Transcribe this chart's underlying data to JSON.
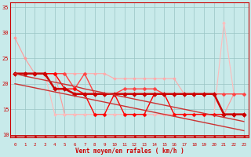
{
  "xlabel": "Vent moyen/en rafales ( km/h )",
  "xlim": [
    0,
    23
  ],
  "ylim": [
    9.5,
    36
  ],
  "yticks": [
    10,
    15,
    20,
    25,
    30,
    35
  ],
  "xticks": [
    0,
    1,
    2,
    3,
    4,
    5,
    6,
    7,
    8,
    9,
    10,
    11,
    12,
    13,
    14,
    15,
    16,
    17,
    18,
    19,
    20,
    21,
    22,
    23
  ],
  "bg_color": "#c8eaea",
  "grid_color": "#99c4c4",
  "series": [
    {
      "color": "#ffaaaa",
      "linewidth": 0.8,
      "marker": "D",
      "markersize": 2.0,
      "linestyle": "-",
      "y": [
        22,
        22,
        22,
        22,
        22,
        22,
        22,
        22,
        22,
        22,
        21,
        21,
        21,
        21,
        21,
        21,
        21,
        18,
        18,
        18,
        18,
        18,
        18,
        18
      ]
    },
    {
      "color": "#ff9999",
      "linewidth": 0.8,
      "marker": "D",
      "markersize": 2.0,
      "linestyle": "-",
      "y": [
        29,
        25,
        22,
        22,
        22,
        14,
        14,
        14,
        14,
        14,
        14,
        14,
        14,
        14,
        14,
        14,
        14,
        14,
        14,
        14,
        14,
        14,
        18,
        18
      ]
    },
    {
      "color": "#ffbbbb",
      "linewidth": 0.8,
      "marker": "D",
      "markersize": 2.0,
      "linestyle": "-",
      "y": [
        22,
        22,
        22,
        22,
        14,
        14,
        14,
        14,
        14,
        14,
        14,
        14,
        14,
        14,
        14,
        14,
        14,
        14,
        14,
        14,
        14,
        32,
        18,
        18
      ]
    },
    {
      "color": "#ff4444",
      "linewidth": 1.0,
      "marker": "D",
      "markersize": 2.5,
      "linestyle": "-",
      "y": [
        22,
        22,
        22,
        22,
        22,
        22,
        19,
        22,
        18,
        18,
        18,
        19,
        19,
        19,
        19,
        18,
        18,
        18,
        18,
        18,
        18,
        18,
        18,
        18
      ]
    },
    {
      "color": "#ff0000",
      "linewidth": 1.0,
      "marker": "D",
      "markersize": 2.5,
      "linestyle": "-",
      "y": [
        22,
        22,
        22,
        22,
        22,
        19,
        19,
        18,
        14,
        14,
        18,
        14,
        14,
        14,
        18,
        18,
        14,
        14,
        14,
        14,
        14,
        14,
        14,
        14
      ]
    },
    {
      "color": "#cc0000",
      "linewidth": 1.8,
      "marker": "D",
      "markersize": 3.0,
      "linestyle": "-",
      "y": [
        22,
        22,
        22,
        22,
        19,
        19,
        18,
        18,
        18,
        18,
        18,
        18,
        18,
        18,
        18,
        18,
        18,
        18,
        18,
        18,
        18,
        14,
        14,
        14
      ]
    },
    {
      "color": "#cc3333",
      "linewidth": 1.0,
      "marker": null,
      "markersize": 0,
      "linestyle": "-",
      "y": [
        22.0,
        21.5,
        21.1,
        20.7,
        20.3,
        19.9,
        19.5,
        19.0,
        18.6,
        18.2,
        17.8,
        17.4,
        17.0,
        16.6,
        16.2,
        15.8,
        15.4,
        15.0,
        14.6,
        14.2,
        13.8,
        13.4,
        13.0,
        12.6
      ]
    },
    {
      "color": "#cc3333",
      "linewidth": 1.0,
      "marker": null,
      "markersize": 0,
      "linestyle": "-",
      "y": [
        20.0,
        19.6,
        19.2,
        18.8,
        18.4,
        18.0,
        17.6,
        17.2,
        16.8,
        16.4,
        16.0,
        15.6,
        15.2,
        14.8,
        14.4,
        14.0,
        13.6,
        13.2,
        12.8,
        12.4,
        12.0,
        11.6,
        11.2,
        10.8
      ]
    }
  ],
  "arrow_color": "#cc0000",
  "spine_color": "#cc0000"
}
